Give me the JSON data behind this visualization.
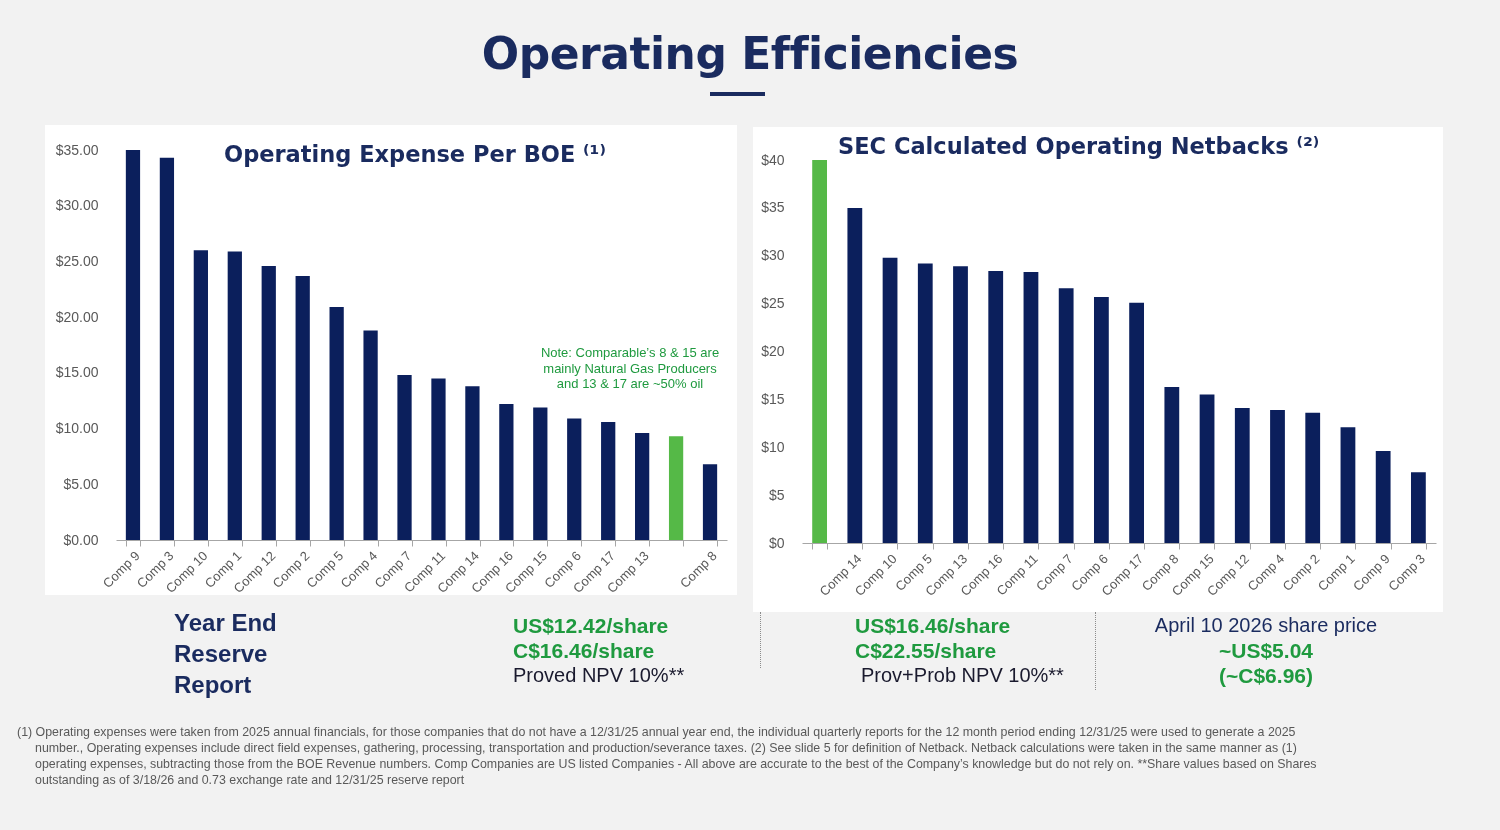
{
  "chart_data": [
    {
      "type": "other",
      "title": "Operating Efficiencies"
    },
    {
      "type": "bar",
      "title": "Operating Expense Per BOE ⁽¹⁾",
      "categories": [
        "Comp 9",
        "Comp 3",
        "Comp 10",
        "Comp 1",
        "Comp 12",
        "Comp 2",
        "Comp 5",
        "Comp 4",
        "Comp 7",
        "Comp 11",
        "Comp 14",
        "Comp 16",
        "Comp 15",
        "Comp 6",
        "Comp 17",
        "Comp 13",
        null,
        "Comp 8"
      ],
      "values": [
        35.0,
        34.3,
        26.0,
        25.9,
        24.6,
        23.7,
        20.9,
        18.8,
        14.8,
        14.5,
        13.8,
        12.2,
        11.9,
        10.9,
        10.6,
        9.6,
        9.3,
        6.8
      ],
      "colors": [
        "#0b1f5c",
        "#0b1f5c",
        "#0b1f5c",
        "#0b1f5c",
        "#0b1f5c",
        "#0b1f5c",
        "#0b1f5c",
        "#0b1f5c",
        "#0b1f5c",
        "#0b1f5c",
        "#0b1f5c",
        "#0b1f5c",
        "#0b1f5c",
        "#0b1f5c",
        "#0b1f5c",
        "#0b1f5c",
        "#55b947",
        "#0b1f5c"
      ],
      "ylim": [
        0,
        35
      ],
      "yticks": [
        {
          "value": 0,
          "label": "$0.00"
        },
        {
          "value": 5,
          "label": "$5.00"
        },
        {
          "value": 10,
          "label": "$10.00"
        },
        {
          "value": 15,
          "label": "$15.00"
        },
        {
          "value": 20,
          "label": "$20.00"
        },
        {
          "value": 25,
          "label": "$25.00"
        },
        {
          "value": 30,
          "label": "$30.00"
        },
        {
          "value": 35,
          "label": "$35.00"
        }
      ],
      "annotations": [
        "Note: Comparable’s 8 & 15 are mainly Natural Gas Producers and 13 & 17 are ~50% oil"
      ]
    },
    {
      "type": "bar",
      "title": "SEC Calculated Operating Netbacks ⁽²⁾",
      "categories": [
        null,
        "Comp 14",
        "Comp 10",
        "Comp 5",
        "Comp 13",
        "Comp 16",
        "Comp 11",
        "Comp 7",
        "Comp 6",
        "Comp 17",
        "Comp 8",
        "Comp 15",
        "Comp 12",
        "Comp 4",
        "Comp 2",
        "Comp 1",
        "Comp 9",
        "Comp 3"
      ],
      "values": [
        40.0,
        35.0,
        29.8,
        29.2,
        28.9,
        28.4,
        28.3,
        26.6,
        25.7,
        25.1,
        16.3,
        15.5,
        14.1,
        13.9,
        13.6,
        12.1,
        9.6,
        7.4
      ],
      "colors": [
        "#55b947",
        "#0b1f5c",
        "#0b1f5c",
        "#0b1f5c",
        "#0b1f5c",
        "#0b1f5c",
        "#0b1f5c",
        "#0b1f5c",
        "#0b1f5c",
        "#0b1f5c",
        "#0b1f5c",
        "#0b1f5c",
        "#0b1f5c",
        "#0b1f5c",
        "#0b1f5c",
        "#0b1f5c",
        "#0b1f5c",
        "#0b1f5c"
      ],
      "ylim": [
        0,
        40
      ],
      "yticks": [
        {
          "value": 0,
          "label": "$0"
        },
        {
          "value": 5,
          "label": "$5"
        },
        {
          "value": 10,
          "label": "$10"
        },
        {
          "value": 15,
          "label": "$15"
        },
        {
          "value": 20,
          "label": "$20"
        },
        {
          "value": 25,
          "label": "$25"
        },
        {
          "value": 30,
          "label": "$30"
        },
        {
          "value": 35,
          "label": "$35"
        },
        {
          "value": 40,
          "label": "$40"
        }
      ]
    },
    {
      "type": "other",
      "title": "Year End Reserve Report",
      "annotations": [
        "US$12.42/share",
        "C$16.46/share",
        "Proved NPV 10%**",
        "US$16.46/share",
        "C$22.55/share",
        "Prov+Prob NPV 10%**",
        "April 10 2026 share price",
        "~US$5.04",
        "(~C$6.96)",
        "(1) Operating expenses were taken from 2025 annual financials, for those companies that do not have a 12/31/25 annual year end, the individual quarterly reports for the 12 month period ending 12/31/25 were used to generate a 2025 number., Operating expenses include direct field expenses, gathering, processing, transportation and production/severance taxes.  (2) See slide 5 for definition of Netback. Netback calculations were taken in the same manner as (1) operating expenses, subtracting those from the BOE Revenue numbers.  Comp Companies are US listed Companies  - All above are accurate to the best of the Company’s knowledge but do not rely on. **Share values based on Shares outstanding as of 3/18/26 and 0.73 exchange rate and 12/31/25 reserve report"
      ]
    }
  ]
}
